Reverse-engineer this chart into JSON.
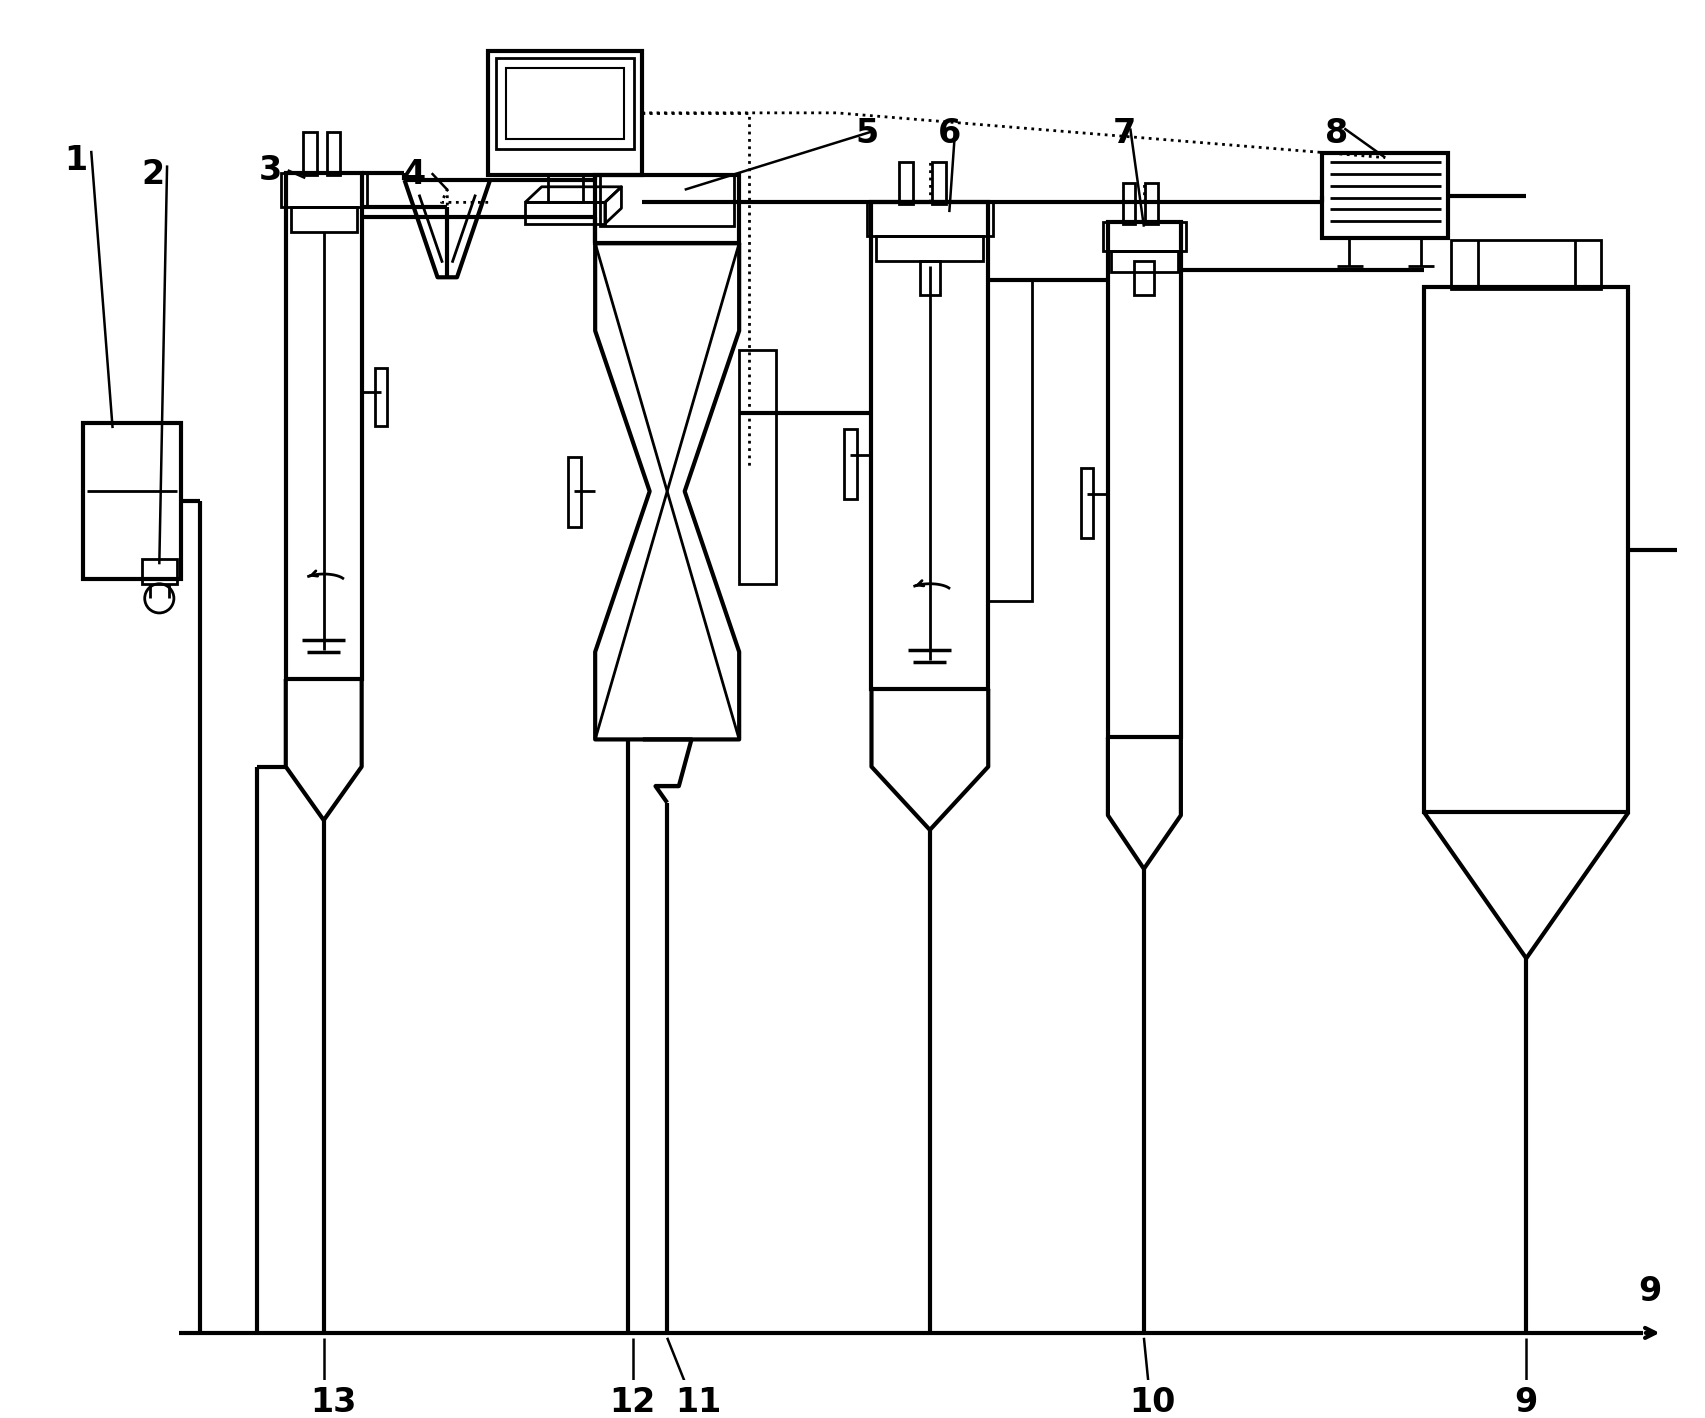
{
  "background": "#ffffff",
  "lc": "#000000",
  "figsize": [
    17.06,
    14.18
  ],
  "dpi": 100
}
